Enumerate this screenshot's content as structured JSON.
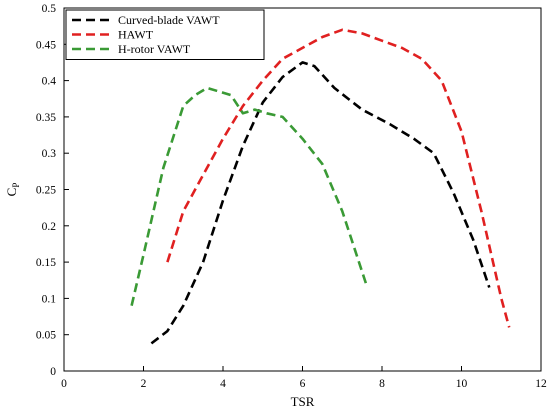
{
  "chart_data": {
    "type": "line",
    "xlabel": "TSR",
    "ylabel_main": "C",
    "ylabel_sub": "P",
    "xlim": [
      0,
      12
    ],
    "ylim": [
      0,
      0.5
    ],
    "xticks": [
      0,
      2,
      4,
      6,
      8,
      10,
      12
    ],
    "yticks": [
      0,
      0.05,
      0.1,
      0.15,
      0.2,
      0.25,
      0.3,
      0.35,
      0.4,
      0.45,
      0.5
    ],
    "xtick_labels": [
      "0",
      "2",
      "4",
      "6",
      "8",
      "10",
      "12"
    ],
    "ytick_labels": [
      "0",
      "0.05",
      "0.1",
      "0.15",
      "0.2",
      "0.25",
      "0.3",
      "0.35",
      "0.4",
      "0.45",
      "0.5"
    ],
    "grid": false,
    "legend_position": "top-left",
    "series": [
      {
        "name": "Curved-blade VAWT",
        "color": "#000000",
        "x": [
          2.2,
          2.6,
          3.0,
          3.5,
          4.0,
          4.5,
          5.0,
          5.5,
          6.0,
          6.3,
          6.8,
          7.5,
          8.2,
          8.8,
          9.3,
          9.8,
          10.3,
          10.7
        ],
        "y": [
          0.038,
          0.055,
          0.09,
          0.15,
          0.235,
          0.31,
          0.37,
          0.405,
          0.425,
          0.42,
          0.39,
          0.36,
          0.34,
          0.32,
          0.3,
          0.245,
          0.18,
          0.115
        ]
      },
      {
        "name": "HAWT",
        "color": "#e02020",
        "x": [
          2.6,
          3.0,
          3.5,
          4.0,
          4.5,
          5.0,
          5.5,
          6.0,
          6.5,
          7.0,
          7.5,
          8.0,
          8.5,
          9.0,
          9.5,
          10.0,
          10.5,
          11.0,
          11.2
        ],
        "y": [
          0.15,
          0.22,
          0.27,
          0.32,
          0.365,
          0.4,
          0.43,
          0.445,
          0.46,
          0.47,
          0.465,
          0.455,
          0.445,
          0.43,
          0.4,
          0.33,
          0.22,
          0.1,
          0.06
        ]
      },
      {
        "name": "H-rotor VAWT",
        "color": "#3a9a35",
        "x": [
          1.7,
          2.0,
          2.5,
          3.0,
          3.3,
          3.6,
          3.9,
          4.2,
          4.5,
          4.8,
          5.1,
          5.5,
          6.0,
          6.5,
          7.0,
          7.3,
          7.6
        ],
        "y": [
          0.09,
          0.16,
          0.28,
          0.365,
          0.38,
          0.39,
          0.385,
          0.38,
          0.355,
          0.36,
          0.355,
          0.35,
          0.32,
          0.285,
          0.22,
          0.17,
          0.12
        ]
      }
    ]
  }
}
